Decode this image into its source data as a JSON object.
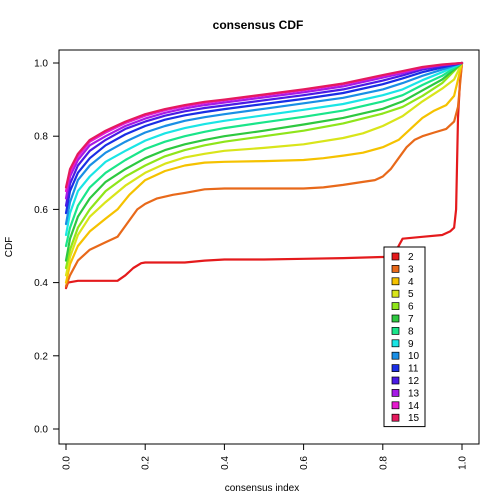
{
  "chart_data": {
    "type": "line",
    "title": "consensus CDF",
    "xlabel": "consensus index",
    "ylabel": "CDF",
    "xlim": [
      0,
      1
    ],
    "ylim": [
      0,
      1
    ],
    "x_ticks": [
      "0.0",
      "0.2",
      "0.4",
      "0.6",
      "0.8",
      "1.0"
    ],
    "y_ticks": [
      "0.0",
      "0.2",
      "0.4",
      "0.6",
      "0.8",
      "1.0"
    ],
    "grid": false,
    "legend_position": "bottom-right",
    "series": [
      {
        "name": "2",
        "color": "#E41A1C",
        "points": [
          [
            0,
            0.385
          ],
          [
            0.005,
            0.4
          ],
          [
            0.03,
            0.405
          ],
          [
            0.13,
            0.405
          ],
          [
            0.15,
            0.42
          ],
          [
            0.17,
            0.44
          ],
          [
            0.19,
            0.453
          ],
          [
            0.2,
            0.455
          ],
          [
            0.3,
            0.455
          ],
          [
            0.35,
            0.46
          ],
          [
            0.4,
            0.463
          ],
          [
            0.5,
            0.463
          ],
          [
            0.6,
            0.465
          ],
          [
            0.7,
            0.467
          ],
          [
            0.8,
            0.47
          ],
          [
            0.82,
            0.47
          ],
          [
            0.83,
            0.48
          ],
          [
            0.84,
            0.5
          ],
          [
            0.85,
            0.52
          ],
          [
            0.9,
            0.525
          ],
          [
            0.95,
            0.53
          ],
          [
            0.97,
            0.54
          ],
          [
            0.98,
            0.55
          ],
          [
            0.985,
            0.6
          ],
          [
            0.99,
            0.85
          ],
          [
            0.995,
            0.95
          ],
          [
            1.0,
            1.0
          ]
        ]
      },
      {
        "name": "3",
        "color": "#E8691A",
        "points": [
          [
            0,
            0.39
          ],
          [
            0.01,
            0.42
          ],
          [
            0.03,
            0.46
          ],
          [
            0.06,
            0.49
          ],
          [
            0.1,
            0.51
          ],
          [
            0.13,
            0.525
          ],
          [
            0.15,
            0.555
          ],
          [
            0.18,
            0.6
          ],
          [
            0.2,
            0.615
          ],
          [
            0.23,
            0.63
          ],
          [
            0.27,
            0.64
          ],
          [
            0.3,
            0.645
          ],
          [
            0.35,
            0.655
          ],
          [
            0.4,
            0.657
          ],
          [
            0.5,
            0.657
          ],
          [
            0.6,
            0.657
          ],
          [
            0.65,
            0.66
          ],
          [
            0.7,
            0.667
          ],
          [
            0.75,
            0.675
          ],
          [
            0.78,
            0.68
          ],
          [
            0.8,
            0.69
          ],
          [
            0.82,
            0.71
          ],
          [
            0.84,
            0.74
          ],
          [
            0.86,
            0.77
          ],
          [
            0.88,
            0.79
          ],
          [
            0.9,
            0.8
          ],
          [
            0.93,
            0.81
          ],
          [
            0.96,
            0.82
          ],
          [
            0.98,
            0.84
          ],
          [
            0.99,
            0.88
          ],
          [
            1.0,
            1.0
          ]
        ]
      },
      {
        "name": "4",
        "color": "#F5C200",
        "points": [
          [
            0,
            0.4
          ],
          [
            0.01,
            0.45
          ],
          [
            0.03,
            0.5
          ],
          [
            0.06,
            0.54
          ],
          [
            0.1,
            0.575
          ],
          [
            0.13,
            0.6
          ],
          [
            0.16,
            0.64
          ],
          [
            0.2,
            0.68
          ],
          [
            0.25,
            0.705
          ],
          [
            0.3,
            0.72
          ],
          [
            0.35,
            0.728
          ],
          [
            0.4,
            0.73
          ],
          [
            0.5,
            0.732
          ],
          [
            0.6,
            0.735
          ],
          [
            0.65,
            0.74
          ],
          [
            0.7,
            0.747
          ],
          [
            0.75,
            0.755
          ],
          [
            0.8,
            0.77
          ],
          [
            0.84,
            0.79
          ],
          [
            0.87,
            0.82
          ],
          [
            0.9,
            0.85
          ],
          [
            0.93,
            0.87
          ],
          [
            0.96,
            0.885
          ],
          [
            0.98,
            0.91
          ],
          [
            1.0,
            1.0
          ]
        ]
      },
      {
        "name": "5",
        "color": "#D9E51A",
        "points": [
          [
            0,
            0.42
          ],
          [
            0.01,
            0.47
          ],
          [
            0.03,
            0.53
          ],
          [
            0.06,
            0.58
          ],
          [
            0.1,
            0.62
          ],
          [
            0.15,
            0.665
          ],
          [
            0.2,
            0.7
          ],
          [
            0.25,
            0.725
          ],
          [
            0.3,
            0.742
          ],
          [
            0.35,
            0.752
          ],
          [
            0.4,
            0.76
          ],
          [
            0.5,
            0.768
          ],
          [
            0.6,
            0.778
          ],
          [
            0.7,
            0.795
          ],
          [
            0.75,
            0.808
          ],
          [
            0.8,
            0.828
          ],
          [
            0.85,
            0.855
          ],
          [
            0.9,
            0.895
          ],
          [
            0.95,
            0.93
          ],
          [
            0.98,
            0.955
          ],
          [
            1.0,
            1.0
          ]
        ]
      },
      {
        "name": "6",
        "color": "#8FE51A",
        "points": [
          [
            0,
            0.44
          ],
          [
            0.01,
            0.49
          ],
          [
            0.03,
            0.55
          ],
          [
            0.06,
            0.6
          ],
          [
            0.1,
            0.65
          ],
          [
            0.15,
            0.69
          ],
          [
            0.2,
            0.72
          ],
          [
            0.25,
            0.745
          ],
          [
            0.3,
            0.762
          ],
          [
            0.35,
            0.775
          ],
          [
            0.4,
            0.785
          ],
          [
            0.5,
            0.8
          ],
          [
            0.6,
            0.815
          ],
          [
            0.7,
            0.835
          ],
          [
            0.8,
            0.862
          ],
          [
            0.85,
            0.88
          ],
          [
            0.9,
            0.91
          ],
          [
            0.95,
            0.945
          ],
          [
            1.0,
            1.0
          ]
        ]
      },
      {
        "name": "7",
        "color": "#2EC840",
        "points": [
          [
            0,
            0.46
          ],
          [
            0.01,
            0.52
          ],
          [
            0.03,
            0.58
          ],
          [
            0.06,
            0.63
          ],
          [
            0.1,
            0.675
          ],
          [
            0.15,
            0.71
          ],
          [
            0.2,
            0.74
          ],
          [
            0.25,
            0.762
          ],
          [
            0.3,
            0.778
          ],
          [
            0.35,
            0.79
          ],
          [
            0.4,
            0.8
          ],
          [
            0.5,
            0.815
          ],
          [
            0.6,
            0.832
          ],
          [
            0.7,
            0.85
          ],
          [
            0.8,
            0.875
          ],
          [
            0.85,
            0.895
          ],
          [
            0.9,
            0.925
          ],
          [
            0.95,
            0.955
          ],
          [
            1.0,
            1.0
          ]
        ]
      },
      {
        "name": "8",
        "color": "#1AE58A",
        "points": [
          [
            0,
            0.5
          ],
          [
            0.01,
            0.55
          ],
          [
            0.03,
            0.61
          ],
          [
            0.06,
            0.66
          ],
          [
            0.1,
            0.7
          ],
          [
            0.15,
            0.735
          ],
          [
            0.2,
            0.765
          ],
          [
            0.25,
            0.785
          ],
          [
            0.3,
            0.8
          ],
          [
            0.35,
            0.812
          ],
          [
            0.4,
            0.822
          ],
          [
            0.5,
            0.838
          ],
          [
            0.6,
            0.853
          ],
          [
            0.7,
            0.87
          ],
          [
            0.8,
            0.895
          ],
          [
            0.85,
            0.912
          ],
          [
            0.9,
            0.94
          ],
          [
            0.95,
            0.965
          ],
          [
            1.0,
            1.0
          ]
        ]
      },
      {
        "name": "9",
        "color": "#1AE5E5",
        "points": [
          [
            0,
            0.53
          ],
          [
            0.01,
            0.59
          ],
          [
            0.03,
            0.65
          ],
          [
            0.06,
            0.69
          ],
          [
            0.1,
            0.73
          ],
          [
            0.15,
            0.76
          ],
          [
            0.2,
            0.788
          ],
          [
            0.25,
            0.808
          ],
          [
            0.3,
            0.822
          ],
          [
            0.35,
            0.833
          ],
          [
            0.4,
            0.842
          ],
          [
            0.5,
            0.857
          ],
          [
            0.6,
            0.872
          ],
          [
            0.7,
            0.888
          ],
          [
            0.8,
            0.912
          ],
          [
            0.85,
            0.928
          ],
          [
            0.9,
            0.953
          ],
          [
            0.95,
            0.975
          ],
          [
            1.0,
            1.0
          ]
        ]
      },
      {
        "name": "10",
        "color": "#1A8FE5",
        "points": [
          [
            0,
            0.56
          ],
          [
            0.01,
            0.62
          ],
          [
            0.03,
            0.68
          ],
          [
            0.06,
            0.72
          ],
          [
            0.1,
            0.755
          ],
          [
            0.15,
            0.785
          ],
          [
            0.2,
            0.81
          ],
          [
            0.25,
            0.828
          ],
          [
            0.3,
            0.842
          ],
          [
            0.35,
            0.852
          ],
          [
            0.4,
            0.86
          ],
          [
            0.5,
            0.875
          ],
          [
            0.6,
            0.89
          ],
          [
            0.7,
            0.905
          ],
          [
            0.8,
            0.928
          ],
          [
            0.85,
            0.945
          ],
          [
            0.9,
            0.965
          ],
          [
            0.95,
            0.982
          ],
          [
            1.0,
            1.0
          ]
        ]
      },
      {
        "name": "11",
        "color": "#1A2EE5",
        "points": [
          [
            0,
            0.59
          ],
          [
            0.01,
            0.65
          ],
          [
            0.03,
            0.7
          ],
          [
            0.06,
            0.74
          ],
          [
            0.1,
            0.775
          ],
          [
            0.15,
            0.805
          ],
          [
            0.2,
            0.828
          ],
          [
            0.25,
            0.845
          ],
          [
            0.3,
            0.857
          ],
          [
            0.35,
            0.866
          ],
          [
            0.4,
            0.874
          ],
          [
            0.5,
            0.888
          ],
          [
            0.6,
            0.902
          ],
          [
            0.7,
            0.918
          ],
          [
            0.8,
            0.942
          ],
          [
            0.85,
            0.958
          ],
          [
            0.9,
            0.975
          ],
          [
            0.95,
            0.988
          ],
          [
            1.0,
            1.0
          ]
        ]
      },
      {
        "name": "12",
        "color": "#4A1AE5",
        "points": [
          [
            0,
            0.61
          ],
          [
            0.01,
            0.67
          ],
          [
            0.03,
            0.72
          ],
          [
            0.06,
            0.76
          ],
          [
            0.1,
            0.79
          ],
          [
            0.15,
            0.82
          ],
          [
            0.2,
            0.84
          ],
          [
            0.25,
            0.856
          ],
          [
            0.3,
            0.868
          ],
          [
            0.35,
            0.877
          ],
          [
            0.4,
            0.884
          ],
          [
            0.5,
            0.898
          ],
          [
            0.6,
            0.912
          ],
          [
            0.7,
            0.928
          ],
          [
            0.8,
            0.952
          ],
          [
            0.85,
            0.966
          ],
          [
            0.9,
            0.982
          ],
          [
            0.95,
            0.992
          ],
          [
            1.0,
            1.0
          ]
        ]
      },
      {
        "name": "13",
        "color": "#A51AE5",
        "points": [
          [
            0,
            0.63
          ],
          [
            0.01,
            0.69
          ],
          [
            0.03,
            0.735
          ],
          [
            0.06,
            0.775
          ],
          [
            0.1,
            0.8
          ],
          [
            0.15,
            0.828
          ],
          [
            0.2,
            0.848
          ],
          [
            0.25,
            0.864
          ],
          [
            0.3,
            0.876
          ],
          [
            0.35,
            0.885
          ],
          [
            0.4,
            0.892
          ],
          [
            0.5,
            0.906
          ],
          [
            0.6,
            0.92
          ],
          [
            0.7,
            0.936
          ],
          [
            0.8,
            0.96
          ],
          [
            0.85,
            0.972
          ],
          [
            0.9,
            0.986
          ],
          [
            0.95,
            0.994
          ],
          [
            1.0,
            1.0
          ]
        ]
      },
      {
        "name": "14",
        "color": "#E51ACE",
        "points": [
          [
            0,
            0.65
          ],
          [
            0.01,
            0.7
          ],
          [
            0.03,
            0.745
          ],
          [
            0.06,
            0.785
          ],
          [
            0.1,
            0.81
          ],
          [
            0.15,
            0.836
          ],
          [
            0.2,
            0.856
          ],
          [
            0.25,
            0.871
          ],
          [
            0.3,
            0.882
          ],
          [
            0.35,
            0.891
          ],
          [
            0.4,
            0.898
          ],
          [
            0.5,
            0.912
          ],
          [
            0.6,
            0.926
          ],
          [
            0.7,
            0.942
          ],
          [
            0.8,
            0.965
          ],
          [
            0.85,
            0.976
          ],
          [
            0.9,
            0.988
          ],
          [
            0.95,
            0.995
          ],
          [
            1.0,
            1.0
          ]
        ]
      },
      {
        "name": "15",
        "color": "#E51A5E",
        "points": [
          [
            0,
            0.66
          ],
          [
            0.01,
            0.71
          ],
          [
            0.03,
            0.752
          ],
          [
            0.06,
            0.79
          ],
          [
            0.1,
            0.815
          ],
          [
            0.15,
            0.84
          ],
          [
            0.2,
            0.86
          ],
          [
            0.25,
            0.874
          ],
          [
            0.3,
            0.885
          ],
          [
            0.35,
            0.894
          ],
          [
            0.4,
            0.9
          ],
          [
            0.5,
            0.914
          ],
          [
            0.6,
            0.928
          ],
          [
            0.7,
            0.944
          ],
          [
            0.8,
            0.967
          ],
          [
            0.85,
            0.978
          ],
          [
            0.9,
            0.989
          ],
          [
            0.95,
            0.996
          ],
          [
            1.0,
            1.0
          ]
        ]
      }
    ]
  }
}
